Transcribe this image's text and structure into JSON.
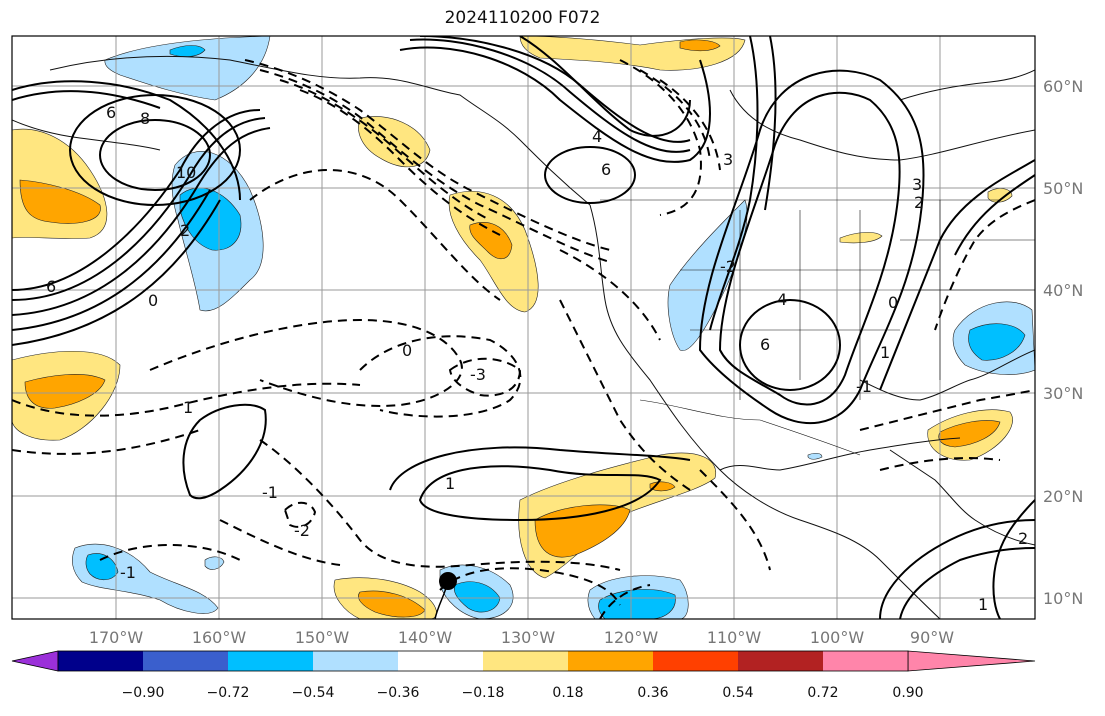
{
  "title": "2024110200 F072",
  "longitude_labels": [
    "170°W",
    "160°W",
    "150°W",
    "140°W",
    "130°W",
    "120°W",
    "110°W",
    "100°W",
    "90°W"
  ],
  "latitude_labels": [
    "60°N",
    "50°N",
    "40°N",
    "30°N",
    "20°N",
    "10°N"
  ],
  "colorbar": {
    "tick_labels": [
      "−0.90",
      "−0.72",
      "−0.54",
      "−0.36",
      "−0.18",
      "0.18",
      "0.36",
      "0.54",
      "0.72",
      "0.90"
    ],
    "colors": [
      "#9b30d9",
      "#00008b",
      "#3a5fcd",
      "#00bfff",
      "#b0e0ff",
      "#ffffff",
      "#ffe680",
      "#ffa500",
      "#ff4000",
      "#b22222",
      "#ff85aa"
    ]
  },
  "contour_labels": [
    "6",
    "8",
    "10",
    "6",
    "4",
    "6",
    "3",
    "2",
    "0",
    "1",
    "-1",
    "-2",
    "-3",
    "0",
    "1",
    "4",
    "6",
    "3",
    "2",
    "0",
    "1",
    "-1",
    "2",
    "1",
    "-1",
    "-2"
  ]
}
